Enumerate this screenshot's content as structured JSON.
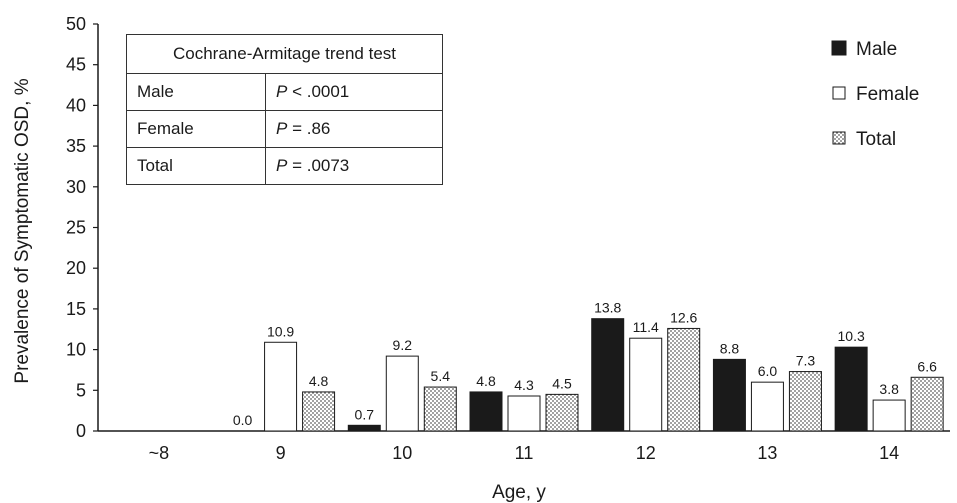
{
  "chart_data": {
    "type": "bar",
    "xlabel": "Age, y",
    "ylabel": "Prevalence of Symptomatic OSD, %",
    "ylim": [
      0,
      50
    ],
    "yticks": [
      0,
      5,
      10,
      15,
      20,
      25,
      30,
      35,
      40,
      45,
      50
    ],
    "categories": [
      "~8",
      "9",
      "10",
      "11",
      "12",
      "13",
      "14"
    ],
    "series": [
      {
        "name": "Male",
        "pattern": "solid",
        "color": "#1a1a1a",
        "values": [
          null,
          0.0,
          0.7,
          4.8,
          13.8,
          8.8,
          10.3
        ],
        "labels": [
          null,
          "0.0",
          "0.7",
          "4.8",
          "13.8",
          "8.8",
          "10.3"
        ]
      },
      {
        "name": "Female",
        "pattern": "hollow",
        "color": "#ffffff",
        "values": [
          null,
          10.9,
          9.2,
          4.3,
          11.4,
          6.0,
          3.8
        ],
        "labels": [
          null,
          "10.9",
          "9.2",
          "4.3",
          "11.4",
          "6.0",
          "3.8"
        ]
      },
      {
        "name": "Total",
        "pattern": "dotted",
        "color": "#ffffff",
        "values": [
          null,
          4.8,
          5.4,
          4.5,
          12.6,
          7.3,
          6.6
        ],
        "labels": [
          null,
          "4.8",
          "5.4",
          "4.5",
          "12.6",
          "7.3",
          "6.6"
        ]
      }
    ],
    "legend_position": "top-right",
    "grid": false
  },
  "trend_table": {
    "title": "Cochrane-Armitage trend test",
    "rows": [
      {
        "group": "Male",
        "p_symbol": "P",
        "p_rest": " < .0001"
      },
      {
        "group": "Female",
        "p_symbol": "P",
        "p_rest": " = .86"
      },
      {
        "group": "Total",
        "p_symbol": "P",
        "p_rest": " = .0073"
      }
    ]
  }
}
